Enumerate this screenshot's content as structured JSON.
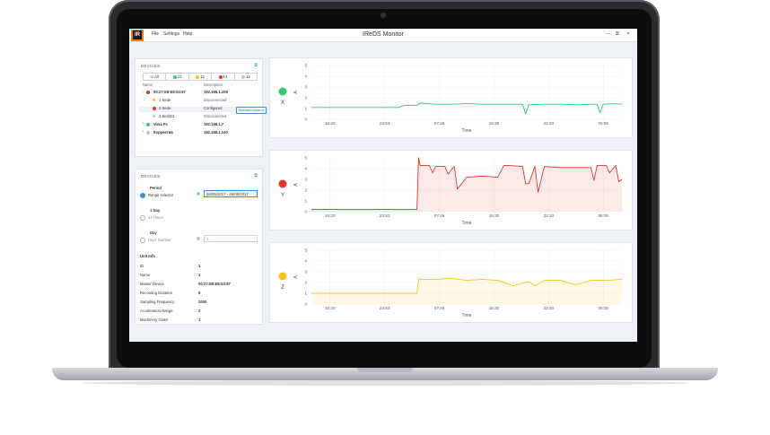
{
  "app": {
    "title": "IReDS Monitor",
    "logo_text": "IR",
    "menu": [
      "File",
      "Settings",
      "Help"
    ],
    "window_controls": [
      "—",
      "⧉",
      "✕"
    ]
  },
  "devices_panel": {
    "title": "DEVICES",
    "filters": [
      {
        "label": "All",
        "icon": "select-all-icon"
      },
      {
        "label": "12",
        "color": "#2ecc71"
      },
      {
        "label": "12",
        "color": "#f5c518"
      },
      {
        "label": "13",
        "color": "#e0352b"
      },
      {
        "label": "12",
        "color": "#c0c4c8"
      }
    ],
    "columns": [
      "Name",
      "Description"
    ],
    "rows": [
      {
        "name": "00:27:E8:E8:53:87",
        "description": "192.168.1.209",
        "color": "#e0352b",
        "bold": true,
        "expand": "−"
      },
      {
        "name": "1 Sede",
        "description": "Disconnected",
        "color": "#f5c518",
        "bold": false,
        "expand": ""
      },
      {
        "name": "2 Sede",
        "description": "Configured",
        "color": "#e0352b",
        "bold": false,
        "expand": ""
      },
      {
        "name": "3 Bed321",
        "description": "Disconnected",
        "color": "#c0c4c8",
        "bold": false,
        "expand": ""
      },
      {
        "name": "Vova Pc",
        "description": "192.168.1.7",
        "color": "#2ecc71",
        "bold": true,
        "expand": "+"
      },
      {
        "name": "Корректив",
        "description": "192.168.1.140",
        "color": "#c0c4c8",
        "bold": true,
        "expand": "+"
      }
    ],
    "selected_button": "Selected measure"
  },
  "period_panel": {
    "title": "DEVICES",
    "period_label": "Period",
    "range_label": "Range selector",
    "range_value": "26/05/2017 - 26/05/2017",
    "day_heading": "1 Day",
    "day_option": "24 Hours",
    "days_heading": "Day",
    "days_option": "Days Number",
    "days_value": "1",
    "unit_info_title": "Unit Info",
    "unit_info": [
      {
        "label": "ID",
        "value": "1"
      },
      {
        "label": "Name",
        "value": "1"
      },
      {
        "label": "Master Device",
        "value": "00:27:E8:E8:53:87"
      },
      {
        "label": "Recording Duration",
        "value": "5"
      },
      {
        "label": "Sampling Frequency",
        "value": "2000"
      },
      {
        "label": "Acceleration Range",
        "value": "2"
      },
      {
        "label": "Machinery Class",
        "value": "1"
      }
    ]
  },
  "chart_data": [
    {
      "type": "line",
      "series": [
        {
          "name": "X",
          "color": "#2ecc71"
        }
      ],
      "x_ticks": [
        "16:20",
        "23:53",
        "07:26",
        "15:30",
        "22:33",
        "06:06"
      ],
      "xlabel": "Time",
      "ylabel": "A",
      "ylim": [
        0,
        5
      ],
      "y_ticks": [
        0,
        1,
        2,
        3,
        4,
        5
      ],
      "x": [
        0,
        0.05,
        0.1,
        0.15,
        0.2,
        0.25,
        0.28,
        0.3,
        0.32,
        0.34,
        0.35,
        0.4,
        0.45,
        0.5,
        0.55,
        0.6,
        0.65,
        0.68,
        0.69,
        0.7,
        0.75,
        0.8,
        0.85,
        0.9,
        0.92,
        0.93,
        0.94,
        0.97,
        1.0
      ],
      "values": [
        1.1,
        1.1,
        1.1,
        1.1,
        1.1,
        1.1,
        1.1,
        1.3,
        1.3,
        1.3,
        1.5,
        1.4,
        1.4,
        1.45,
        1.4,
        1.4,
        1.4,
        1.4,
        0.5,
        1.35,
        1.4,
        1.4,
        1.35,
        1.4,
        1.4,
        0.6,
        1.4,
        1.45,
        1.4
      ]
    },
    {
      "type": "area",
      "series": [
        {
          "name": "Y",
          "color": "#e0352b"
        }
      ],
      "x_ticks": [
        "16:20",
        "23:53",
        "07:26",
        "15:30",
        "22:33",
        "06:06"
      ],
      "xlabel": "Time",
      "ylabel": "A",
      "ylim": [
        0,
        5
      ],
      "y_ticks": [
        0,
        1,
        2,
        3,
        4,
        5
      ],
      "x": [
        0,
        0.1,
        0.2,
        0.3,
        0.34,
        0.345,
        0.35,
        0.38,
        0.39,
        0.4,
        0.43,
        0.44,
        0.46,
        0.47,
        0.5,
        0.55,
        0.6,
        0.62,
        0.63,
        0.68,
        0.69,
        0.7,
        0.72,
        0.73,
        0.75,
        0.8,
        0.85,
        0.9,
        0.91,
        0.92,
        0.95,
        0.96,
        0.98,
        0.99,
        1.0
      ],
      "values": [
        0.2,
        0.2,
        0.2,
        0.2,
        0.2,
        5.0,
        4.3,
        4.3,
        3.6,
        4.2,
        4.2,
        3.5,
        4.2,
        2.1,
        3.2,
        3.3,
        3.2,
        4.3,
        4.3,
        4.2,
        2.6,
        2.6,
        4.2,
        1.8,
        4.2,
        4.1,
        4.1,
        4.1,
        2.9,
        4.3,
        4.3,
        3.6,
        4.3,
        2.8,
        3.0
      ]
    },
    {
      "type": "area",
      "series": [
        {
          "name": "Z",
          "color": "#f5c518"
        }
      ],
      "x_ticks": [
        "16:20",
        "23:53",
        "07:26",
        "15:30",
        "22:33",
        "06:06"
      ],
      "xlabel": "Time",
      "ylabel": "A",
      "ylim": [
        0,
        5
      ],
      "y_ticks": [
        0,
        1,
        2,
        3,
        4,
        5
      ],
      "x": [
        0,
        0.1,
        0.2,
        0.3,
        0.34,
        0.345,
        0.4,
        0.45,
        0.5,
        0.55,
        0.6,
        0.65,
        0.7,
        0.72,
        0.75,
        0.8,
        0.85,
        0.9,
        0.95,
        1.0
      ],
      "values": [
        1.0,
        1.0,
        1.0,
        1.0,
        1.0,
        2.3,
        2.3,
        2.4,
        2.2,
        2.3,
        2.2,
        1.7,
        2.1,
        1.7,
        2.2,
        2.2,
        1.8,
        2.2,
        2.2,
        2.3
      ]
    }
  ]
}
